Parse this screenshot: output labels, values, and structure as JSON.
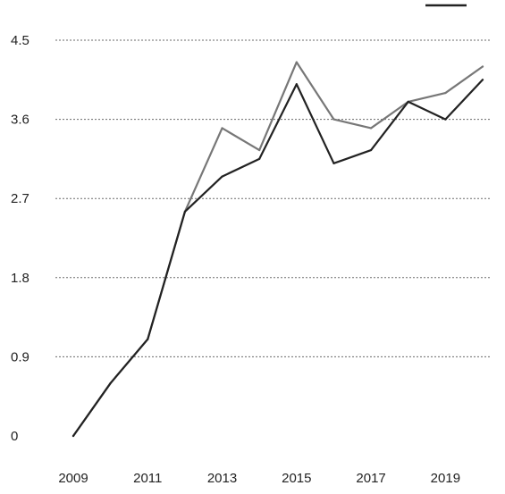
{
  "chart_data": {
    "type": "line",
    "title": "",
    "xlabel": "",
    "ylabel": "",
    "x": [
      2009,
      2010,
      2011,
      2012,
      2013,
      2014,
      2015,
      2016,
      2017,
      2018,
      2019,
      2020
    ],
    "x_tick_labels": [
      "2009",
      "2011",
      "2013",
      "2015",
      "2017",
      "2019"
    ],
    "x_tick_values": [
      2009,
      2011,
      2013,
      2015,
      2017,
      2019
    ],
    "y_tick_labels": [
      "0",
      "0.9",
      "1.8",
      "2.7",
      "3.6",
      "4.5"
    ],
    "y_tick_values": [
      0,
      0.9,
      1.8,
      2.7,
      3.6,
      4.5
    ],
    "xlim": [
      2009,
      2020
    ],
    "ylim": [
      0,
      4.5
    ],
    "grid": "horizontal dotted",
    "legend": "top-right",
    "series": [
      {
        "color": "#777777",
        "values": [
          0.0,
          0.6,
          1.1,
          2.55,
          3.5,
          3.25,
          4.25,
          3.6,
          3.5,
          3.8,
          3.9,
          4.2
        ]
      },
      {
        "color": "#222222",
        "values": [
          0.0,
          0.6,
          1.1,
          2.55,
          2.95,
          3.15,
          4.0,
          3.1,
          3.25,
          3.8,
          3.6,
          4.05
        ]
      }
    ]
  }
}
